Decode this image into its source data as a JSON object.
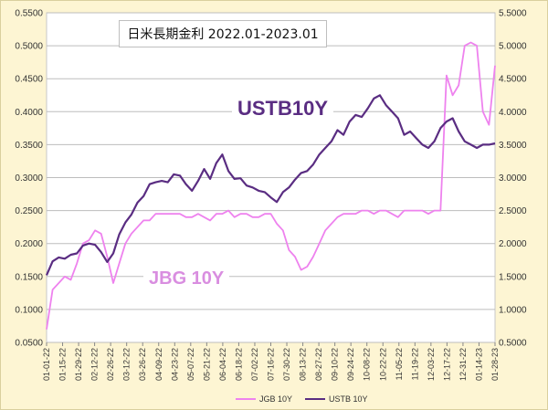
{
  "chart_data": {
    "type": "line",
    "title": "日米長期金利 2022.01-2023.01",
    "annotations": [
      "USTB10Y",
      "JBG 10Y"
    ],
    "left_axis": {
      "ylim": [
        0.05,
        0.55
      ],
      "ticks": [
        "0.0500",
        "0.1000",
        "0.1500",
        "0.2000",
        "0.2500",
        "0.3000",
        "0.3500",
        "0.4000",
        "0.4500",
        "0.5000",
        "0.5500"
      ]
    },
    "right_axis": {
      "ylim": [
        0.5,
        5.5
      ],
      "ticks": [
        "0.5000",
        "1.0000",
        "1.5000",
        "2.0000",
        "2.5000",
        "3.0000",
        "3.5000",
        "4.0000",
        "4.5000",
        "5.0000",
        "5.5000"
      ]
    },
    "x_tick_labels": [
      "01-01-22",
      "01-15-22",
      "01-29-22",
      "02-12-22",
      "02-26-22",
      "03-12-22",
      "03-26-22",
      "04-09-22",
      "04-23-22",
      "05-07-22",
      "05-21-22",
      "06-04-22",
      "06-18-22",
      "07-02-22",
      "07-16-22",
      "07-30-22",
      "08-13-22",
      "08-27-22",
      "09-10-22",
      "09-24-22",
      "10-08-22",
      "10-22-22",
      "11-05-22",
      "11-19-22",
      "12-03-22",
      "12-17-22",
      "12-31-22",
      "01-14-23",
      "01-28-23"
    ],
    "grid": true,
    "legend_position": "bottom",
    "colors": {
      "jgb": "#ee82ee",
      "ustb": "#5a2d82"
    },
    "series": [
      {
        "name": "JGB 10Y",
        "axis": "left",
        "values": [
          0.07,
          0.13,
          0.14,
          0.15,
          0.145,
          0.17,
          0.2,
          0.205,
          0.22,
          0.215,
          0.18,
          0.14,
          0.17,
          0.2,
          0.215,
          0.225,
          0.235,
          0.235,
          0.245,
          0.245,
          0.245,
          0.245,
          0.245,
          0.24,
          0.24,
          0.245,
          0.24,
          0.235,
          0.245,
          0.245,
          0.25,
          0.24,
          0.245,
          0.245,
          0.24,
          0.24,
          0.245,
          0.245,
          0.23,
          0.22,
          0.19,
          0.18,
          0.16,
          0.165,
          0.18,
          0.2,
          0.22,
          0.23,
          0.24,
          0.245,
          0.245,
          0.245,
          0.25,
          0.25,
          0.245,
          0.25,
          0.25,
          0.245,
          0.24,
          0.25,
          0.25,
          0.25,
          0.25,
          0.245,
          0.25,
          0.25,
          0.455,
          0.425,
          0.44,
          0.5,
          0.505,
          0.5,
          0.4,
          0.38,
          0.47
        ]
      },
      {
        "name": "USTB 10Y",
        "axis": "right",
        "values": [
          1.52,
          1.73,
          1.79,
          1.77,
          1.83,
          1.85,
          1.97,
          2.0,
          1.98,
          1.87,
          1.72,
          1.85,
          2.14,
          2.32,
          2.44,
          2.62,
          2.72,
          2.9,
          2.93,
          2.95,
          2.93,
          3.05,
          3.03,
          2.9,
          2.8,
          2.95,
          3.13,
          2.98,
          3.22,
          3.35,
          3.1,
          2.98,
          2.99,
          2.88,
          2.85,
          2.8,
          2.78,
          2.7,
          2.63,
          2.78,
          2.85,
          2.97,
          3.07,
          3.1,
          3.2,
          3.35,
          3.45,
          3.55,
          3.72,
          3.65,
          3.85,
          3.95,
          3.92,
          4.05,
          4.2,
          4.25,
          4.1,
          4.0,
          3.9,
          3.65,
          3.7,
          3.6,
          3.5,
          3.45,
          3.55,
          3.75,
          3.85,
          3.9,
          3.7,
          3.55,
          3.5,
          3.45,
          3.5,
          3.5,
          3.52
        ]
      }
    ]
  }
}
